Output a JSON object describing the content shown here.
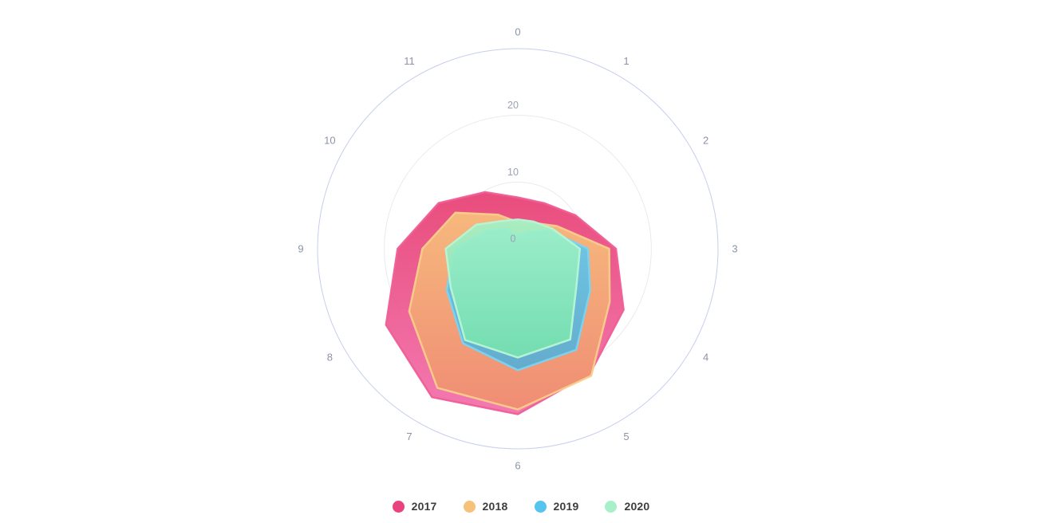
{
  "chart_data": {
    "type": "area",
    "subtype": "polar-area-radar",
    "title": "",
    "categories": [
      "0",
      "1",
      "2",
      "3",
      "4",
      "5",
      "6",
      "7",
      "8",
      "9",
      "10",
      "11"
    ],
    "angle_axis": {
      "start_position": "top",
      "direction": "clockwise",
      "label_color": "#8b94a7"
    },
    "radial_axis": {
      "ticks": [
        0,
        10,
        20
      ],
      "max": 30,
      "label_color": "#9aa2b4",
      "inner_ring_color": "#e9eaf2",
      "outer_ring_color": "#c7ceed"
    },
    "grid": true,
    "legend_position": "bottom",
    "series": [
      {
        "name": "2017",
        "values": [
          7.7,
          7.9,
          10.0,
          14.7,
          18.3,
          21.6,
          24.8,
          25.7,
          22.8,
          18.0,
          13.7,
          9.8
        ],
        "legend_color": "#e8437e",
        "gradient_top": "#e63a6e",
        "gradient_bottom": "#f26ba9",
        "stroke": "#ef5e96"
      },
      {
        "name": "2018",
        "values": [
          4.0,
          4.5,
          6.8,
          13.7,
          15.9,
          22.0,
          24.1,
          24.1,
          18.8,
          14.3,
          10.8,
          5.9
        ],
        "legend_color": "#f6c178",
        "gradient_top": "#f8c37c",
        "gradient_bottom": "#ef8f6e",
        "stroke": "#f9cd8c"
      },
      {
        "name": "2019",
        "values": [
          2.0,
          3.0,
          5.5,
          10.5,
          12.5,
          17.5,
          18.2,
          16.4,
          12.3,
          9.5,
          5.5,
          3.5
        ],
        "legend_color": "#55c5f0",
        "gradient_top": "#61c9f0",
        "gradient_bottom": "#55aed6",
        "stroke": "#79d4f2"
      },
      {
        "name": "2020",
        "values": [
          4.4,
          4.7,
          6.0,
          9.3,
          10.2,
          15.7,
          16.3,
          15.8,
          11.6,
          10.8,
          7.2,
          4.8
        ],
        "legend_color": "#a8f0c8",
        "gradient_top": "#a2f2c8",
        "gradient_bottom": "#75e2ad",
        "stroke": "#b7f5d6"
      }
    ]
  },
  "legend": {
    "items": [
      {
        "label": "2017",
        "color": "#e8437e"
      },
      {
        "label": "2018",
        "color": "#f6c178"
      },
      {
        "label": "2019",
        "color": "#55c5f0"
      },
      {
        "label": "2020",
        "color": "#a8f0c8"
      }
    ]
  }
}
